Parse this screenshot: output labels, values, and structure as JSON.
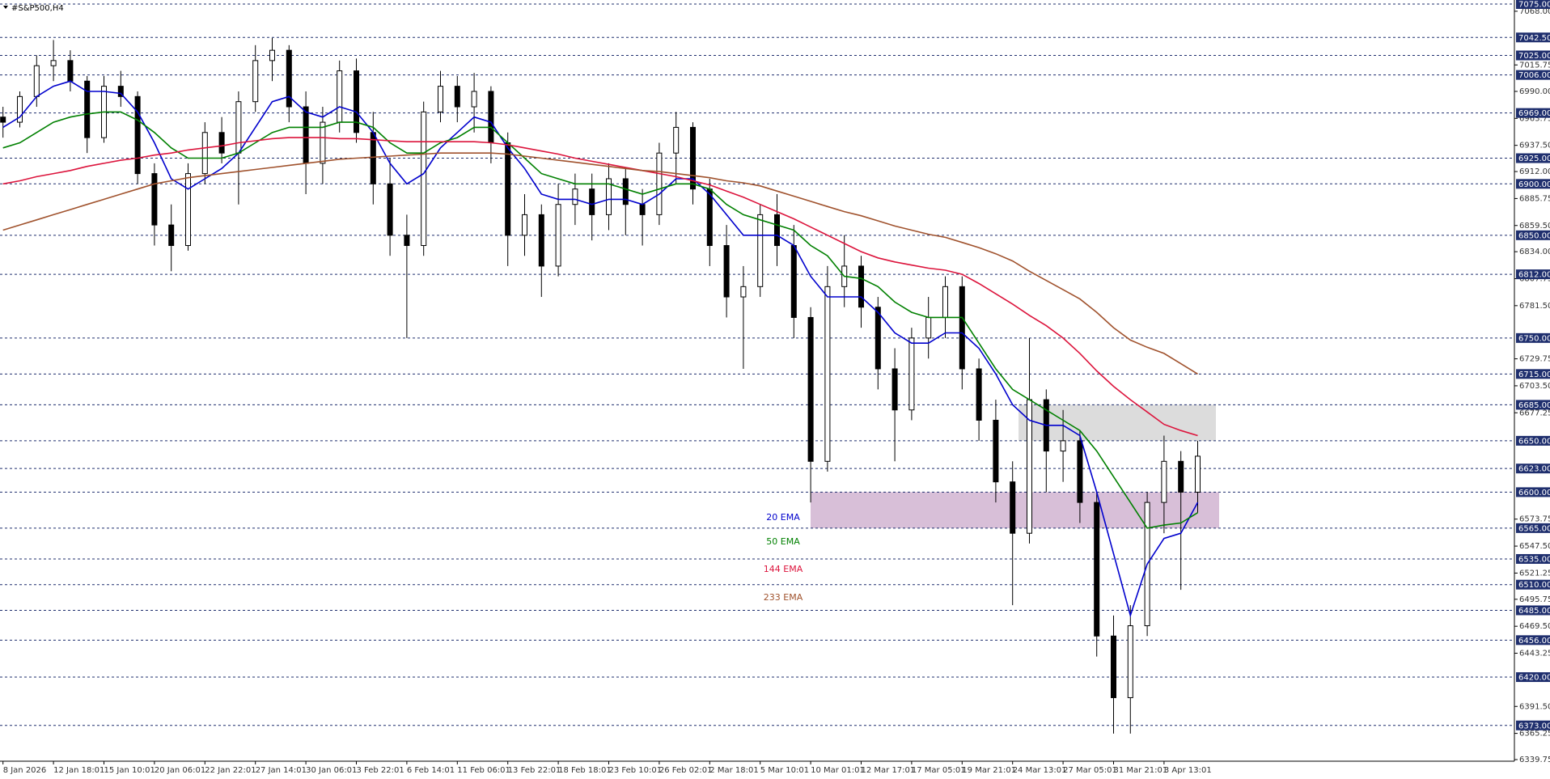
{
  "chart_data": {
    "type": "candlestick",
    "title": "#S&P500,H4",
    "categories": [
      "8 Jan 2026",
      null,
      null,
      "12 Jan 18:01",
      null,
      null,
      "15 Jan 10:01",
      null,
      null,
      "20 Jan 06:01",
      null,
      null,
      "22 Jan 22:01",
      null,
      null,
      "27 Jan 14:01",
      null,
      null,
      "30 Jan 06:01",
      null,
      null,
      "3 Feb 22:01",
      null,
      null,
      "6 Feb 14:01",
      null,
      null,
      "11 Feb 06:01",
      null,
      null,
      "13 Feb 22:01",
      null,
      null,
      "18 Feb 18:01",
      null,
      null,
      "23 Feb 10:01",
      null,
      null,
      "26 Feb 02:01",
      null,
      null,
      "2 Mar 18:01",
      null,
      null,
      "5 Mar 10:01",
      null,
      null,
      "10 Mar 01:01",
      null,
      null,
      "12 Mar 17:01",
      null,
      null,
      "17 Mar 05:01",
      null,
      null,
      "19 Mar 21:01",
      null,
      null,
      "24 Mar 13:01",
      null,
      null,
      "27 Mar 05:01",
      null,
      null,
      "31 Mar 21:01",
      null,
      null,
      "3 Apr 13:01",
      null,
      null
    ],
    "open": [
      6965,
      6960,
      6985,
      7015,
      7020,
      7000,
      6945,
      6995,
      6985,
      6910,
      6860,
      6840,
      6910,
      6950,
      6930,
      6980,
      7020,
      7030,
      6975,
      6920,
      6960,
      7010,
      6950,
      6900,
      6850,
      6840,
      6970,
      6995,
      6975,
      6990,
      6940,
      6850,
      6870,
      6820,
      6880,
      6895,
      6870,
      6905,
      6880,
      6870,
      6930,
      6955,
      6895,
      6840,
      6790,
      6800,
      6870,
      6840,
      6770,
      6630,
      6800,
      6820,
      6780,
      6720,
      6680,
      6750,
      6770,
      6800,
      6720,
      6670,
      6610,
      6560,
      6690,
      6640,
      6650,
      6590,
      6460,
      6400,
      6470,
      6590,
      6630,
      6600
    ],
    "high": [
      6975,
      6990,
      7025,
      7040,
      7030,
      7005,
      7005,
      7010,
      6990,
      6920,
      6880,
      6920,
      6960,
      6965,
      6990,
      7035,
      7042,
      7035,
      6990,
      6975,
      7020,
      7022,
      6970,
      6925,
      6870,
      6980,
      7010,
      7005,
      7008,
      6995,
      6950,
      6890,
      6880,
      6900,
      6910,
      6910,
      6920,
      6915,
      6895,
      6940,
      6970,
      6960,
      6905,
      6860,
      6820,
      6880,
      6890,
      6860,
      6780,
      6820,
      6850,
      6830,
      6790,
      6740,
      6760,
      6790,
      6810,
      6810,
      6730,
      6690,
      6630,
      6750,
      6700,
      6680,
      6660,
      6600,
      6480,
      6490,
      6600,
      6655,
      6640,
      6650
    ],
    "low": [
      6945,
      6955,
      6975,
      7000,
      6990,
      6930,
      6940,
      6975,
      6900,
      6840,
      6815,
      6835,
      6900,
      6920,
      6880,
      6970,
      7000,
      6960,
      6890,
      6900,
      6950,
      6940,
      6880,
      6830,
      6750,
      6830,
      6960,
      6960,
      6950,
      6920,
      6820,
      6830,
      6790,
      6810,
      6860,
      6845,
      6855,
      6850,
      6840,
      6860,
      6900,
      6880,
      6820,
      6770,
      6720,
      6790,
      6820,
      6750,
      6590,
      6620,
      6780,
      6760,
      6700,
      6630,
      6670,
      6730,
      6750,
      6700,
      6650,
      6590,
      6490,
      6550,
      6600,
      6610,
      6570,
      6440,
      6365,
      6365,
      6460,
      6560,
      6505,
      6580
    ],
    "close": [
      6960,
      6985,
      7015,
      7020,
      7000,
      6945,
      6995,
      6985,
      6910,
      6860,
      6840,
      6910,
      6950,
      6930,
      6980,
      7020,
      7030,
      6975,
      6920,
      6960,
      7010,
      6950,
      6900,
      6850,
      6840,
      6970,
      6995,
      6975,
      6990,
      6940,
      6850,
      6870,
      6820,
      6880,
      6895,
      6870,
      6905,
      6880,
      6870,
      6930,
      6955,
      6895,
      6840,
      6790,
      6800,
      6870,
      6840,
      6770,
      6630,
      6800,
      6820,
      6780,
      6720,
      6680,
      6750,
      6770,
      6800,
      6720,
      6670,
      6610,
      6560,
      6690,
      6640,
      6650,
      6590,
      6460,
      6400,
      6470,
      6590,
      6630,
      6600,
      6635
    ],
    "candle_color": "#000000",
    "series": [
      {
        "name": "20 EMA",
        "color": "#0000cd",
        "values": [
          6955,
          6965,
          6985,
          6995,
          7000,
          6990,
          6990,
          6988,
          6970,
          6940,
          6905,
          6895,
          6905,
          6915,
          6930,
          6955,
          6980,
          6985,
          6970,
          6965,
          6975,
          6970,
          6950,
          6920,
          6900,
          6910,
          6935,
          6950,
          6965,
          6960,
          6935,
          6915,
          6890,
          6885,
          6885,
          6880,
          6885,
          6885,
          6880,
          6890,
          6905,
          6905,
          6890,
          6870,
          6850,
          6850,
          6850,
          6840,
          6810,
          6790,
          6790,
          6790,
          6775,
          6755,
          6745,
          6745,
          6755,
          6755,
          6740,
          6715,
          6685,
          6670,
          6665,
          6665,
          6655,
          6600,
          6540,
          6480,
          6530,
          6555,
          6560,
          6590
        ]
      },
      {
        "name": "50 EMA",
        "color": "#008000",
        "values": [
          6935,
          6940,
          6950,
          6960,
          6965,
          6968,
          6970,
          6970,
          6962,
          6950,
          6935,
          6925,
          6925,
          6925,
          6930,
          6940,
          6950,
          6955,
          6955,
          6955,
          6960,
          6960,
          6955,
          6940,
          6930,
          6930,
          6940,
          6945,
          6955,
          6955,
          6940,
          6925,
          6910,
          6905,
          6900,
          6900,
          6900,
          6895,
          6890,
          6895,
          6900,
          6900,
          6895,
          6880,
          6870,
          6865,
          6860,
          6855,
          6840,
          6830,
          6810,
          6808,
          6800,
          6785,
          6775,
          6770,
          6770,
          6770,
          6745,
          6720,
          6700,
          6690,
          6680,
          6670,
          6660,
          6640,
          6615,
          6590,
          6565,
          6568,
          6570,
          6580
        ]
      },
      {
        "name": "144 EMA",
        "color": "#dc143c",
        "values": [
          6900,
          6903,
          6907,
          6910,
          6913,
          6917,
          6920,
          6923,
          6925,
          6928,
          6930,
          6933,
          6935,
          6937,
          6940,
          6942,
          6944,
          6945,
          6945,
          6945,
          6944,
          6944,
          6943,
          6942,
          6941,
          6941,
          6941,
          6941,
          6941,
          6940,
          6938,
          6935,
          6932,
          6929,
          6925,
          6922,
          6919,
          6916,
          6913,
          6910,
          6907,
          6903,
          6899,
          6893,
          6887,
          6880,
          6873,
          6866,
          6858,
          6850,
          6842,
          6834,
          6828,
          6824,
          6821,
          6818,
          6816,
          6812,
          6803,
          6793,
          6783,
          6772,
          6762,
          6750,
          6735,
          6718,
          6703,
          6690,
          6678,
          6666,
          6660,
          6655
        ]
      },
      {
        "name": "233 EMA",
        "color": "#a0522d",
        "values": [
          6855,
          6860,
          6865,
          6870,
          6875,
          6880,
          6885,
          6890,
          6895,
          6900,
          6903,
          6906,
          6908,
          6910,
          6912,
          6914,
          6916,
          6918,
          6920,
          6922,
          6924,
          6925,
          6926,
          6927,
          6928,
          6929,
          6930,
          6930,
          6930,
          6930,
          6929,
          6927,
          6925,
          6923,
          6921,
          6919,
          6917,
          6915,
          6913,
          6912,
          6910,
          6908,
          6906,
          6903,
          6901,
          6898,
          6893,
          6888,
          6883,
          6878,
          6873,
          6869,
          6864,
          6859,
          6855,
          6851,
          6848,
          6843,
          6838,
          6832,
          6825,
          6815,
          6806,
          6797,
          6788,
          6775,
          6760,
          6748,
          6741,
          6735,
          6725,
          6715
        ]
      }
    ],
    "zones": [
      {
        "from": 6650,
        "to": 6685,
        "color": "#dcdcdc"
      },
      {
        "from": 6565,
        "to": 6600,
        "color": "#d8bfd8"
      }
    ],
    "ylim": [
      6339.75,
      7075
    ],
    "yticks": [
      {
        "value": 7068,
        "label": "7068.00"
      },
      {
        "value": 7015.75,
        "label": "7015.75"
      },
      {
        "value": 6990,
        "label": "6990.00"
      },
      {
        "value": 6963.75,
        "label": "6963.75"
      },
      {
        "value": 6937.5,
        "label": "6937.50"
      },
      {
        "value": 6912,
        "label": "6912.00"
      },
      {
        "value": 6885.75,
        "label": "6885.75"
      },
      {
        "value": 6859.5,
        "label": "6859.50"
      },
      {
        "value": 6834,
        "label": "6834.00"
      },
      {
        "value": 6807.75,
        "label": "6807.75"
      },
      {
        "value": 6781.5,
        "label": "6781.50"
      },
      {
        "value": 6729.75,
        "label": "6729.75"
      },
      {
        "value": 6703.5,
        "label": "6703.50"
      },
      {
        "value": 6677.25,
        "label": "6677.25"
      },
      {
        "value": 6573.75,
        "label": "6573.75"
      },
      {
        "value": 6547.5,
        "label": "6547.50"
      },
      {
        "value": 6521.25,
        "label": "6521.25"
      },
      {
        "value": 6495.75,
        "label": "6495.75"
      },
      {
        "value": 6469.5,
        "label": "6469.50"
      },
      {
        "value": 6443.25,
        "label": "6443.25"
      },
      {
        "value": 6391.5,
        "label": "6391.50"
      },
      {
        "value": 6365.25,
        "label": "6365.25"
      },
      {
        "value": 6339.75,
        "label": "6339.75"
      }
    ],
    "levels": [
      {
        "value": 7075,
        "label": "7075.00"
      },
      {
        "value": 7042.5,
        "label": "7042.50"
      },
      {
        "value": 7025,
        "label": "7025.00"
      },
      {
        "value": 7006,
        "label": "7006.00"
      },
      {
        "value": 6969,
        "label": "6969.00"
      },
      {
        "value": 6925,
        "label": "6925.00"
      },
      {
        "value": 6900,
        "label": "6900.00"
      },
      {
        "value": 6850,
        "label": "6850.00"
      },
      {
        "value": 6812,
        "label": "6812.00"
      },
      {
        "value": 6750,
        "label": "6750.00"
      },
      {
        "value": 6715,
        "label": "6715.00"
      },
      {
        "value": 6685,
        "label": "6685.00"
      },
      {
        "value": 6650,
        "label": "6650.00"
      },
      {
        "value": 6623,
        "label": "6623.00"
      },
      {
        "value": 6600,
        "label": "6600.00"
      },
      {
        "value": 6565,
        "label": "6565.00"
      },
      {
        "value": 6535,
        "label": "6535.00"
      },
      {
        "value": 6510,
        "label": "6510.00"
      },
      {
        "value": 6485,
        "label": "6485.00"
      },
      {
        "value": 6456,
        "label": "6456.00"
      },
      {
        "value": 6420,
        "label": "6420.00"
      },
      {
        "value": 6373,
        "label": "6373.00"
      }
    ],
    "level_color": "#1f2f6e"
  }
}
